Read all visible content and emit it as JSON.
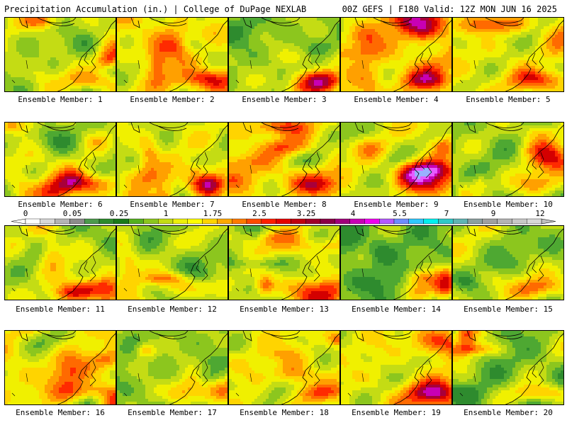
{
  "header": {
    "left": "Precipitation Accumulation (in.) | College of DuPage NEXLAB",
    "right": "00Z GEFS | F180 Valid: 12Z MON JUN 16 2025"
  },
  "members": [
    {
      "label": "Ensemble Member: 1",
      "wetness": 0.45
    },
    {
      "label": "Ensemble Member: 2",
      "wetness": 0.72
    },
    {
      "label": "Ensemble Member: 3",
      "wetness": 0.3
    },
    {
      "label": "Ensemble Member: 4",
      "wetness": 0.7
    },
    {
      "label": "Ensemble Member: 5",
      "wetness": 0.62
    },
    {
      "label": "Ensemble Member: 6",
      "wetness": 0.4
    },
    {
      "label": "Ensemble Member: 7",
      "wetness": 0.52
    },
    {
      "label": "Ensemble Member: 8",
      "wetness": 0.68
    },
    {
      "label": "Ensemble Member: 9",
      "wetness": 0.55
    },
    {
      "label": "Ensemble Member: 10",
      "wetness": 0.32
    },
    {
      "label": "Ensemble Member: 11",
      "wetness": 0.46
    },
    {
      "label": "Ensemble Member: 12",
      "wetness": 0.34
    },
    {
      "label": "Ensemble Member: 13",
      "wetness": 0.5
    },
    {
      "label": "Ensemble Member: 14",
      "wetness": 0.22
    },
    {
      "label": "Ensemble Member: 15",
      "wetness": 0.48
    },
    {
      "label": "Ensemble Member: 16",
      "wetness": 0.66
    },
    {
      "label": "Ensemble Member: 17",
      "wetness": 0.28
    },
    {
      "label": "Ensemble Member: 18",
      "wetness": 0.64
    },
    {
      "label": "Ensemble Member: 19",
      "wetness": 0.58
    },
    {
      "label": "Ensemble Member: 20",
      "wetness": 0.24
    }
  ],
  "colorbar": {
    "tick_labels": [
      "0",
      "0.05",
      "0.25",
      "1",
      "1.75",
      "2.5",
      "3.25",
      "4",
      "5.5",
      "7",
      "9",
      "12"
    ],
    "colors": [
      "#ffffff",
      "#d8d8d8",
      "#b4b4b4",
      "#8c8c8c",
      "#4c9a4c",
      "#2e8b2e",
      "#1a7a1a",
      "#55b020",
      "#8cc61e",
      "#c4dc14",
      "#eef00a",
      "#ffff00",
      "#ffd400",
      "#ffa800",
      "#ff7a00",
      "#ff4a00",
      "#ff1e00",
      "#e60000",
      "#c00010",
      "#a0002a",
      "#8a0046",
      "#a0007a",
      "#c800b4",
      "#f000f0",
      "#b45aff",
      "#6e8cff",
      "#30c8ff",
      "#00f0f0",
      "#30c8c8",
      "#60b4b4",
      "#8ca0a0",
      "#a0a0a0",
      "#b4b4b4",
      "#c8c8c8",
      "#d8d8d8"
    ]
  }
}
